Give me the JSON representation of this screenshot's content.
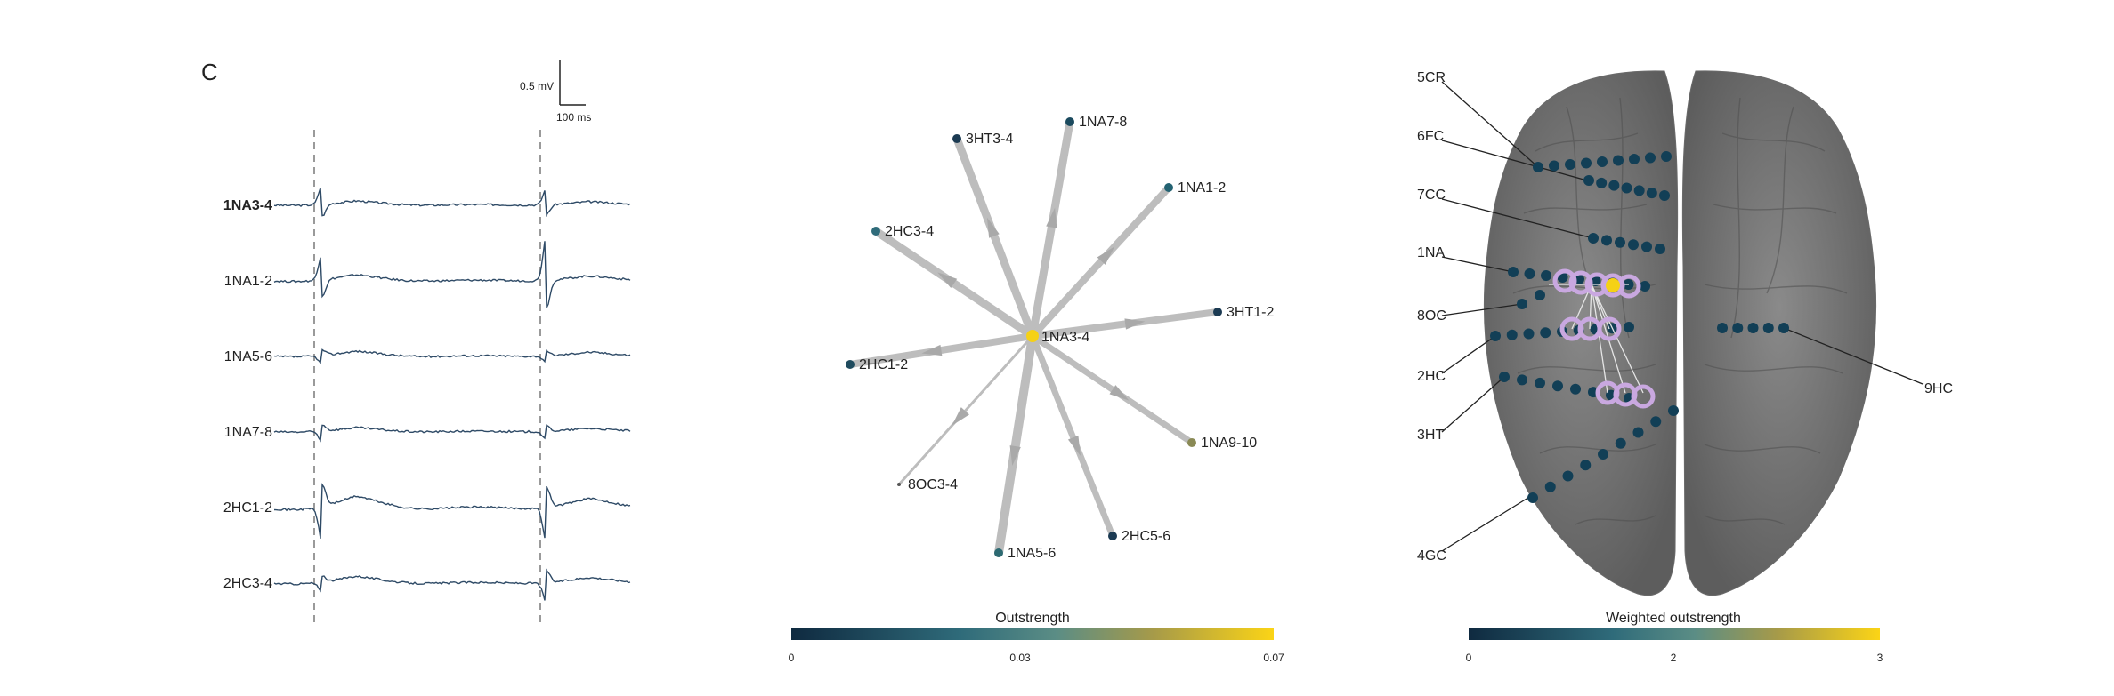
{
  "panel_letter": "C",
  "scale_bar": {
    "voltage": "0.5 mV",
    "time": "100 ms"
  },
  "traces": [
    {
      "label": "1NA3-4",
      "bold": true
    },
    {
      "label": "1NA1-2",
      "bold": false
    },
    {
      "label": "1NA5-6",
      "bold": false
    },
    {
      "label": "1NA7-8",
      "bold": false
    },
    {
      "label": "2HC1-2",
      "bold": false
    },
    {
      "label": "2HC3-4",
      "bold": false
    }
  ],
  "network": {
    "center": {
      "label": "1NA3-4",
      "color": "#f5d116"
    },
    "nodes": [
      {
        "label": "3HT3-4",
        "color": "#1b3a52"
      },
      {
        "label": "1NA7-8",
        "color": "#1b4a5e"
      },
      {
        "label": "1NA1-2",
        "color": "#236272"
      },
      {
        "label": "2HC3-4",
        "color": "#2f6b7a"
      },
      {
        "label": "3HT1-2",
        "color": "#1b3a52"
      },
      {
        "label": "2HC1-2",
        "color": "#1f4b5e"
      },
      {
        "label": "1NA9-10",
        "color": "#8a8a55"
      },
      {
        "label": "8OC3-4",
        "color": "#555"
      },
      {
        "label": "1NA5-6",
        "color": "#2d6a72"
      },
      {
        "label": "2HC5-6",
        "color": "#1b3a52"
      }
    ],
    "colorbar": {
      "title": "Outstrength",
      "ticks": [
        "0",
        "0.03",
        "0.07"
      ]
    }
  },
  "brain": {
    "labels": [
      "5CR",
      "6FC",
      "7CC",
      "1NA",
      "8OC",
      "2HC",
      "3HT",
      "4GC",
      "9HC"
    ],
    "colorbar": {
      "title": "Weighted outstrength",
      "ticks": [
        "0",
        "2",
        "3"
      ]
    },
    "dot_color": "#123f56",
    "highlight_color": "#c9a8e0"
  },
  "colors": {
    "trace": "#2e4a66",
    "dashed": "#9a9a9a",
    "edge": "#bdbdbd"
  }
}
